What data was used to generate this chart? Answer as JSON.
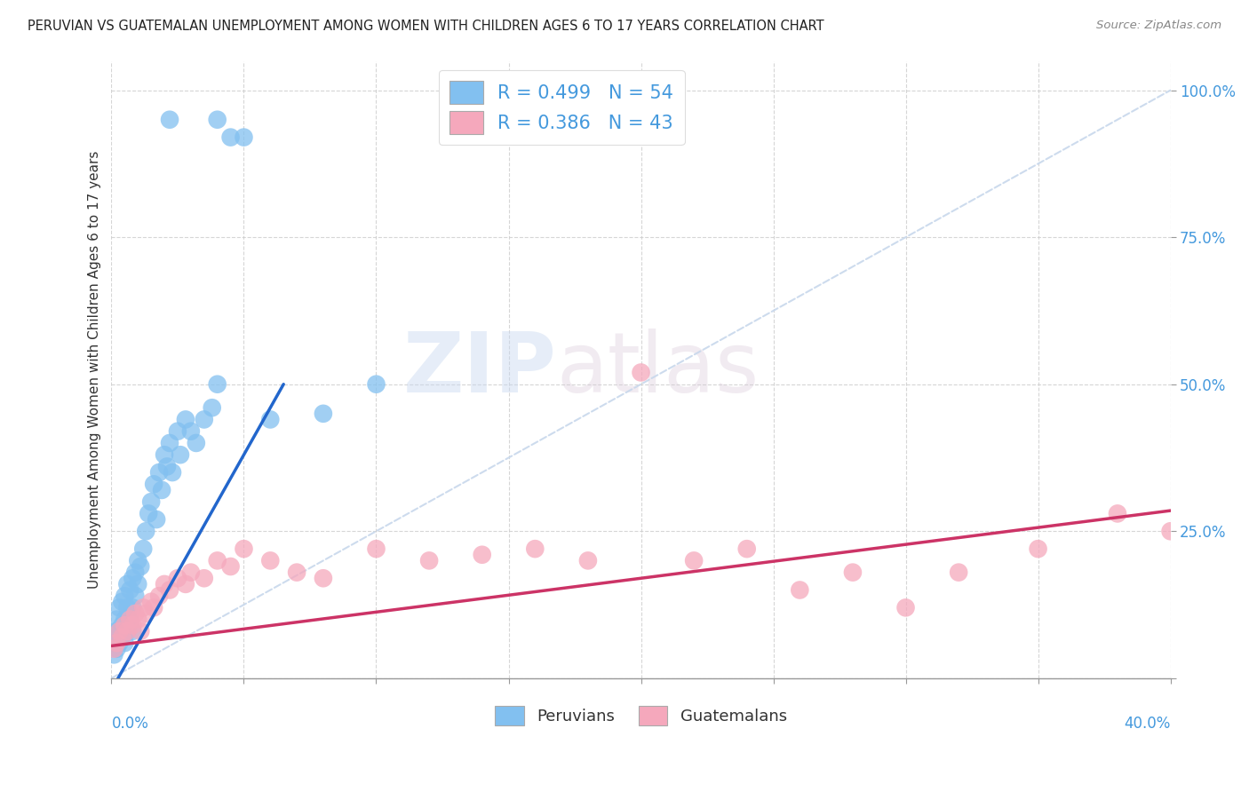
{
  "title": "PERUVIAN VS GUATEMALAN UNEMPLOYMENT AMONG WOMEN WITH CHILDREN AGES 6 TO 17 YEARS CORRELATION CHART",
  "source": "Source: ZipAtlas.com",
  "ylabel": "Unemployment Among Women with Children Ages 6 to 17 years",
  "xlim": [
    0.0,
    0.4
  ],
  "ylim": [
    0.0,
    1.05
  ],
  "yticks": [
    0.0,
    0.25,
    0.5,
    0.75,
    1.0
  ],
  "ytick_labels": [
    "",
    "25.0%",
    "50.0%",
    "75.0%",
    "100.0%"
  ],
  "peruvian_color": "#82c0f0",
  "guatemalan_color": "#f5a8bc",
  "peruvian_line_color": "#2266cc",
  "guatemalan_line_color": "#cc3366",
  "diagonal_color": "#c8d8ec",
  "title_color": "#222222",
  "axis_label_color": "#333333",
  "tick_label_color": "#4499dd",
  "legend_r_color": "#4499dd",
  "background_color": "#ffffff",
  "peruvian_line_x0": 0.0,
  "peruvian_line_y0": -0.02,
  "peruvian_line_x1": 0.065,
  "peruvian_line_y1": 0.5,
  "guatemalan_line_x0": 0.0,
  "guatemalan_line_y0": 0.055,
  "guatemalan_line_x1": 0.4,
  "guatemalan_line_y1": 0.285,
  "peruvians_x": [
    0.001,
    0.001,
    0.002,
    0.002,
    0.002,
    0.003,
    0.003,
    0.003,
    0.004,
    0.004,
    0.004,
    0.005,
    0.005,
    0.005,
    0.006,
    0.006,
    0.006,
    0.007,
    0.007,
    0.008,
    0.008,
    0.008,
    0.009,
    0.009,
    0.01,
    0.01,
    0.011,
    0.012,
    0.013,
    0.014,
    0.015,
    0.016,
    0.017,
    0.018,
    0.019,
    0.02,
    0.021,
    0.022,
    0.023,
    0.025,
    0.026,
    0.028,
    0.03,
    0.032,
    0.035,
    0.038,
    0.04,
    0.045,
    0.05,
    0.06,
    0.08,
    0.1,
    0.022,
    0.04
  ],
  "peruvians_y": [
    0.04,
    0.06,
    0.05,
    0.08,
    0.1,
    0.06,
    0.08,
    0.12,
    0.07,
    0.09,
    0.13,
    0.06,
    0.1,
    0.14,
    0.08,
    0.12,
    0.16,
    0.1,
    0.15,
    0.12,
    0.17,
    0.08,
    0.14,
    0.18,
    0.16,
    0.2,
    0.19,
    0.22,
    0.25,
    0.28,
    0.3,
    0.33,
    0.27,
    0.35,
    0.32,
    0.38,
    0.36,
    0.4,
    0.35,
    0.42,
    0.38,
    0.44,
    0.42,
    0.4,
    0.44,
    0.46,
    0.5,
    0.92,
    0.92,
    0.44,
    0.45,
    0.5,
    0.95,
    0.95
  ],
  "guatemalans_x": [
    0.001,
    0.002,
    0.003,
    0.004,
    0.005,
    0.006,
    0.007,
    0.008,
    0.009,
    0.01,
    0.011,
    0.012,
    0.013,
    0.015,
    0.016,
    0.018,
    0.02,
    0.022,
    0.025,
    0.028,
    0.03,
    0.035,
    0.04,
    0.045,
    0.05,
    0.06,
    0.07,
    0.08,
    0.1,
    0.12,
    0.14,
    0.16,
    0.18,
    0.2,
    0.22,
    0.24,
    0.26,
    0.28,
    0.3,
    0.32,
    0.35,
    0.38,
    0.4
  ],
  "guatemalans_y": [
    0.05,
    0.06,
    0.08,
    0.07,
    0.09,
    0.08,
    0.1,
    0.09,
    0.11,
    0.1,
    0.08,
    0.12,
    0.11,
    0.13,
    0.12,
    0.14,
    0.16,
    0.15,
    0.17,
    0.16,
    0.18,
    0.17,
    0.2,
    0.19,
    0.22,
    0.2,
    0.18,
    0.17,
    0.22,
    0.2,
    0.21,
    0.22,
    0.2,
    0.52,
    0.2,
    0.22,
    0.15,
    0.18,
    0.12,
    0.18,
    0.22,
    0.28,
    0.25
  ]
}
